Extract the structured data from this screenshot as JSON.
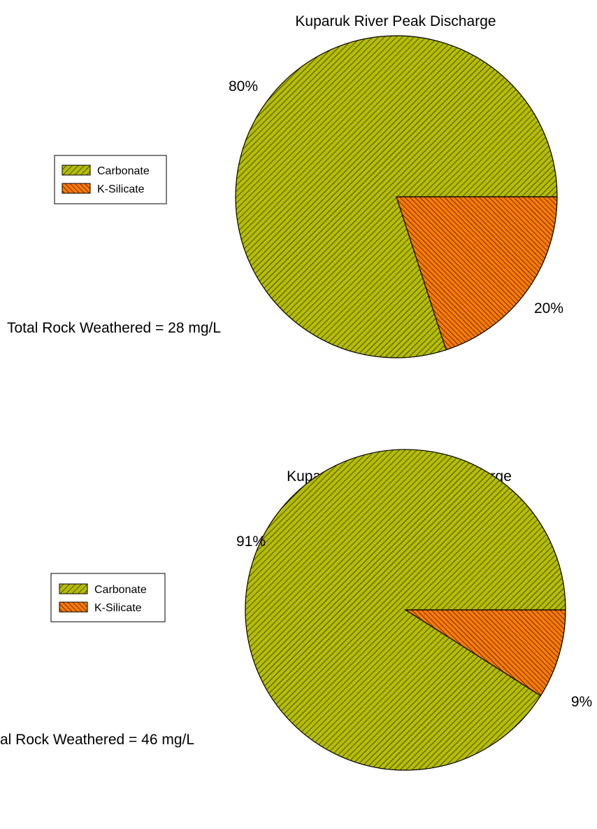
{
  "colors": {
    "carbonate_fill": "#b5bd00",
    "ksilicate_fill": "#ff7a00",
    "hatch": "#000000",
    "outline": "#000000"
  },
  "chart_data": [
    {
      "type": "pie",
      "title": "Kuparuk River Peak Discharge",
      "labels": [
        "Carbonate",
        "K-Silicate"
      ],
      "values": [
        80,
        20
      ],
      "value_labels": [
        "80%",
        "20%"
      ],
      "legend": [
        "Carbonate",
        "K-Silicate"
      ],
      "legend_position": "left",
      "annotation": "Total Rock Weathered = 28 mg/L"
    },
    {
      "type": "pie",
      "title": "Kuparuk River Off-Peak Discharge",
      "labels": [
        "Carbonate",
        "K-Silicate"
      ],
      "values": [
        91,
        9
      ],
      "value_labels": [
        "91%",
        "9%"
      ],
      "legend": [
        "Carbonate",
        "K-Silicate"
      ],
      "legend_position": "left",
      "annotation": "al Rock Weathered = 46 mg/L"
    }
  ]
}
